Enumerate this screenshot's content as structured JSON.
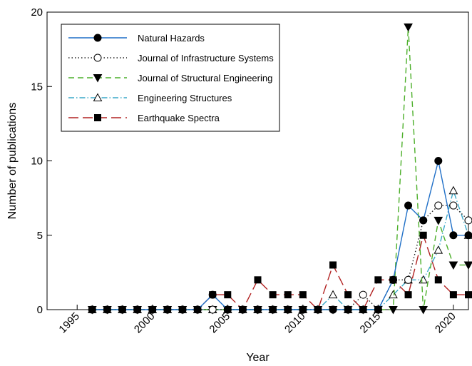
{
  "chart_data": {
    "type": "line",
    "xlabel": "Year",
    "ylabel": "Number of publications",
    "xlim": [
      1993,
      2021
    ],
    "ylim": [
      0,
      20
    ],
    "x_ticks": [
      1995,
      2000,
      2005,
      2010,
      2015,
      2020
    ],
    "y_ticks": [
      0,
      5,
      10,
      15,
      20
    ],
    "legend_position": "top-left",
    "x": [
      1996,
      1997,
      1998,
      1999,
      2000,
      2001,
      2002,
      2003,
      2004,
      2005,
      2006,
      2007,
      2008,
      2009,
      2010,
      2011,
      2012,
      2013,
      2014,
      2015,
      2016,
      2017,
      2018,
      2019,
      2020,
      2021
    ],
    "series": [
      {
        "name": "Natural Hazards",
        "color": "#1f6fc7",
        "dash": "solid",
        "marker": "circle-filled",
        "values": [
          0,
          0,
          0,
          0,
          0,
          0,
          0,
          0,
          1,
          0,
          0,
          0,
          0,
          0,
          0,
          0,
          0,
          0,
          0,
          0,
          2,
          7,
          6,
          10,
          5,
          5
        ]
      },
      {
        "name": "Journal of Infrastructure Systems",
        "color": "#222222",
        "dash": "dotted",
        "marker": "circle-open",
        "values": [
          0,
          0,
          0,
          0,
          0,
          0,
          0,
          0,
          0,
          0,
          0,
          0,
          0,
          0,
          0,
          0,
          0,
          0,
          1,
          0,
          2,
          2,
          6,
          7,
          7,
          6
        ]
      },
      {
        "name": "Journal of Structural Engineering",
        "color": "#4caf2a",
        "dash": "dashed",
        "marker": "triangle-down-filled",
        "values": [
          0,
          0,
          0,
          0,
          0,
          0,
          0,
          0,
          0,
          0,
          0,
          0,
          0,
          0,
          0,
          0,
          0,
          0,
          0,
          0,
          0,
          19,
          0,
          6,
          3,
          3
        ]
      },
      {
        "name": "Engineering Structures",
        "color": "#3aa8c8",
        "dash": "dash-dot",
        "marker": "triangle-up-open",
        "values": [
          0,
          0,
          0,
          0,
          0,
          0,
          0,
          0,
          0,
          0,
          0,
          0,
          0,
          0,
          0,
          0,
          1,
          0,
          0,
          0,
          1,
          2,
          2,
          4,
          8,
          5
        ]
      },
      {
        "name": "Earthquake Spectra",
        "color": "#b22222",
        "dash": "long-dash",
        "marker": "square-filled",
        "values": [
          0,
          0,
          0,
          0,
          0,
          0,
          0,
          0,
          1,
          1,
          0,
          2,
          1,
          1,
          1,
          0,
          3,
          1,
          0,
          2,
          2,
          1,
          5,
          2,
          1,
          1
        ]
      }
    ]
  }
}
